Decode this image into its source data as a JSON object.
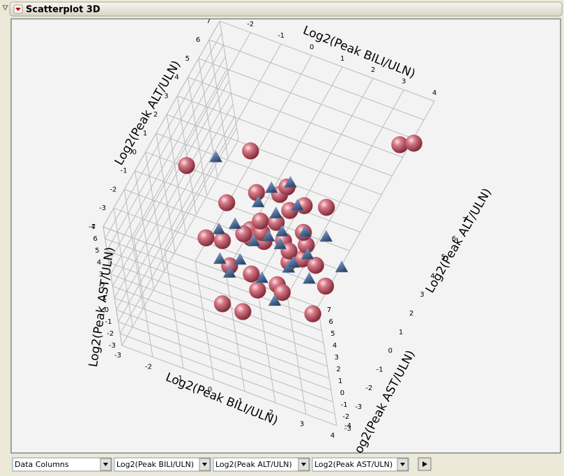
{
  "ui": {
    "title": "Scatterplot 3D",
    "dropdowns": [
      "Data Columns",
      "Log2(Peak BILI/ULN)",
      "Log2(Peak ALT/ULN)",
      "Log2(Peak AST/ULN)"
    ]
  },
  "chart_data": {
    "type": "scatter3d",
    "xlabel": "Log2(Peak BILI/ULN)",
    "ylabel": "Log2(Peak ALT/ULN)",
    "zlabel": "Log2(Peak AST/ULN)",
    "xlim": [
      -3,
      4
    ],
    "ylim": [
      -4,
      7
    ],
    "zlim": [
      -3,
      7
    ],
    "xticks": [
      -3,
      -2,
      -1,
      0,
      1,
      2,
      3,
      4
    ],
    "yticks": [
      -4,
      -3,
      -2,
      -1,
      0,
      1,
      2,
      3,
      4,
      5,
      6,
      7
    ],
    "zticks": [
      -3,
      -2,
      -1,
      0,
      1,
      2,
      3,
      4,
      5,
      6,
      7
    ],
    "grid": true,
    "series": [
      {
        "marker": "circle",
        "color": "#c85a6c",
        "x": [
          -0.5,
          0.2,
          0.8,
          -1.2,
          0.5,
          1.0,
          -0.3,
          0.1,
          -0.8,
          1.4,
          0.6,
          -1.5,
          0.3,
          -0.1,
          0.9,
          1.8,
          -0.6,
          0.4,
          -2.5,
          2.5,
          1.2,
          -0.9,
          0.0,
          0.7,
          -0.4,
          1.6,
          3.5,
          3.9,
          0.2,
          -1.8,
          2.0,
          1.1,
          -0.2,
          0.5,
          -1.0,
          -0.7
        ],
        "y": [
          1.5,
          2.0,
          1.2,
          0.8,
          2.5,
          1.8,
          1.0,
          2.8,
          1.6,
          1.4,
          0.5,
          2.2,
          3.0,
          0.2,
          2.4,
          1.0,
          2.6,
          1.9,
          1.8,
          0.0,
          -0.5,
          0.4,
          1.3,
          3.2,
          2.1,
          2.9,
          5.0,
          5.2,
          -1.5,
          0.9,
          -0.2,
          0.7,
          1.7,
          -0.8,
          3.5,
          -1.0
        ],
        "z": [
          0.5,
          1.0,
          -0.5,
          0.0,
          1.5,
          -1.0,
          0.8,
          2.0,
          -0.3,
          1.2,
          -1.5,
          0.7,
          2.5,
          -0.8,
          0.2,
          0.5,
          1.8,
          -0.2,
          3.5,
          1.0,
          0.0,
          -1.2,
          0.3,
          1.0,
          -0.6,
          2.2,
          6.0,
          6.2,
          -1.0,
          -0.5,
          -1.5,
          1.5,
          1.2,
          0.0,
          3.5,
          -2.0
        ]
      },
      {
        "marker": "triangle",
        "color": "#5b7aa6",
        "x": [
          -0.3,
          0.4,
          0.9,
          -1.0,
          0.1,
          1.3,
          -0.6,
          0.7,
          -1.4,
          0.2,
          1.1,
          -0.2,
          0.5,
          -0.8,
          1.6,
          -2.0,
          2.6,
          0.0,
          -0.5,
          0.8,
          1.9,
          -1.2,
          0.3,
          1.0
        ],
        "y": [
          1.2,
          1.9,
          0.9,
          1.5,
          2.3,
          1.6,
          0.6,
          2.7,
          1.1,
          0.3,
          2.1,
          2.9,
          1.4,
          0.1,
          0.8,
          3.0,
          1.2,
          1.7,
          2.4,
          -0.3,
          1.9,
          0.4,
          3.3,
          1.1
        ],
        "z": [
          0.2,
          0.6,
          -0.4,
          0.5,
          1.2,
          0.0,
          -0.7,
          1.8,
          0.3,
          -1.0,
          0.9,
          2.1,
          0.4,
          -1.2,
          -0.5,
          2.8,
          0.8,
          0.1,
          1.4,
          -1.4,
          1.6,
          -0.9,
          2.4,
          -0.2
        ]
      }
    ]
  }
}
